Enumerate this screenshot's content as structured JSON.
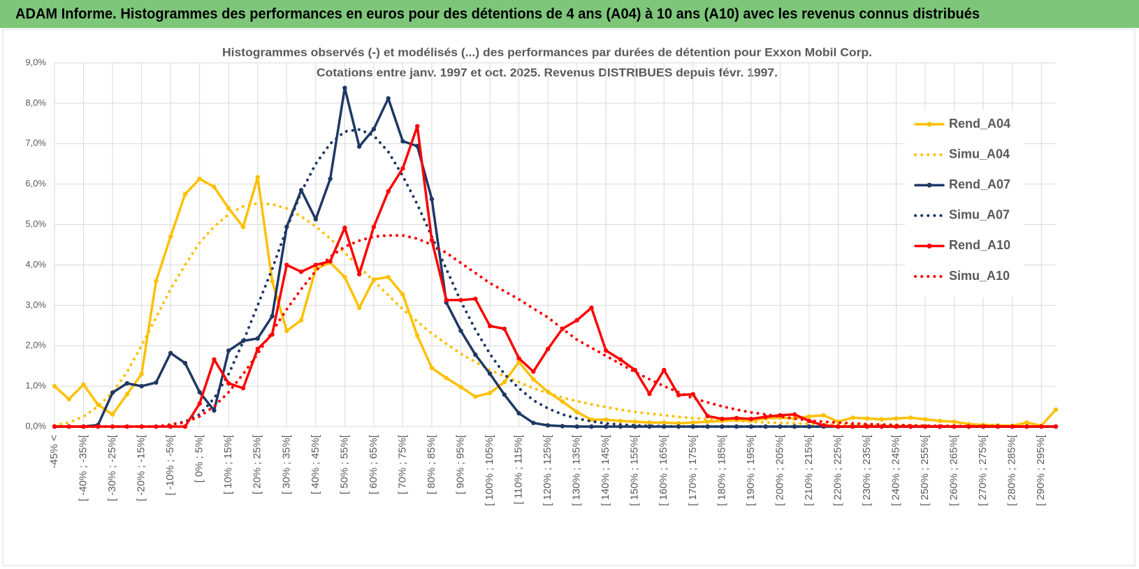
{
  "header": {
    "title": "ADAM Informe. Histogrammes des performances en euros pour des détentions de 4 ans (A04) à 10 ans (A10) avec les revenus connus distribués"
  },
  "chart_data": {
    "type": "line",
    "title": "Histogrammes observés (-) et modélisés (...) des performances par durées de détention pour Exxon Mobil Corp.",
    "subtitle": "Cotations entre janv. 1997 et oct. 2025.  Revenus DISTRIBUES depuis févr. 1997.",
    "categories": [
      "-45% <",
      null,
      "[ -40% ; -35%[",
      null,
      "[ -30% ; -25%[",
      null,
      "[ -20% ; -15%[",
      null,
      "[ -10% ; -5%[",
      null,
      "[ 0% ; 5%[",
      null,
      "[ 10% ; 15%[",
      null,
      "[ 20% ; 25%[",
      null,
      "[ 30% ; 35%[",
      null,
      "[ 40% ; 45%[",
      null,
      "[ 50% ; 55%[",
      null,
      "[ 60% ; 65%[",
      null,
      "[ 70% ; 75%[",
      null,
      "[ 80% ; 85%[",
      null,
      "[ 90% ; 95%[",
      null,
      "[ 100% ; 105%[",
      null,
      "[ 110% ; 115%[",
      null,
      "[ 120% ; 125%[",
      null,
      "[ 130% ; 135%[",
      null,
      "[ 140% ; 145%[",
      null,
      "[ 150% ; 155%[",
      null,
      "[ 160% ; 165%[",
      null,
      "[ 170% ; 175%[",
      null,
      "[ 180% ; 185%[",
      null,
      "[ 190% ; 195%[",
      null,
      "[ 200% ; 205%[",
      null,
      "[ 210% ; 215%[",
      null,
      "[ 220% ; 225%[",
      null,
      "[ 230% ; 235%[",
      null,
      "[ 240% ; 245%[",
      null,
      "[ 250% ; 255%[",
      null,
      "[ 260% ; 265%[",
      null,
      "[ 270% ; 275%[",
      null,
      "[ 280% ; 285%[",
      null,
      "[ 290% ; 295%[",
      null
    ],
    "ylim": [
      0,
      9
    ],
    "yticks": [
      {
        "value": 0,
        "label": "0,0%"
      },
      {
        "value": 1,
        "label": "1,0%"
      },
      {
        "value": 2,
        "label": "2,0%"
      },
      {
        "value": 3,
        "label": "3,0%"
      },
      {
        "value": 4,
        "label": "4,0%"
      },
      {
        "value": 5,
        "label": "5,0%"
      },
      {
        "value": 6,
        "label": "6,0%"
      },
      {
        "value": 7,
        "label": "7,0%"
      },
      {
        "value": 8,
        "label": "8,0%"
      },
      {
        "value": 9,
        "label": "9,0%"
      }
    ],
    "grid": true,
    "legend": "right",
    "series": [
      {
        "name": "Rend_A04",
        "color": "#FFC000",
        "line_style": "solid",
        "values": [
          1.0,
          0.68,
          1.04,
          0.54,
          0.3,
          0.8,
          1.3,
          3.6,
          4.7,
          5.75,
          6.13,
          5.93,
          5.4,
          4.94,
          6.17,
          3.6,
          2.37,
          2.63,
          3.9,
          4.06,
          3.7,
          2.94,
          3.64,
          3.7,
          3.27,
          2.25,
          1.45,
          1.2,
          0.98,
          0.74,
          0.83,
          1.1,
          1.6,
          1.17,
          0.86,
          0.62,
          0.36,
          0.17,
          0.17,
          0.14,
          0.12,
          0.1,
          0.1,
          0.08,
          0.1,
          0.12,
          0.14,
          0.16,
          0.15,
          0.2,
          0.22,
          0.2,
          0.25,
          0.28,
          0.12,
          0.22,
          0.2,
          0.18,
          0.2,
          0.22,
          0.18,
          0.14,
          0.12,
          0.06,
          0.04,
          0.03,
          0.02,
          0.1,
          0.02,
          0.42
        ]
      },
      {
        "name": "Simu_A04",
        "color": "#FFC000",
        "line_style": "dotted",
        "values": [
          0.03,
          0.1,
          0.25,
          0.5,
          0.85,
          1.35,
          2.0,
          2.7,
          3.4,
          4.0,
          4.55,
          4.95,
          5.25,
          5.45,
          5.52,
          5.5,
          5.4,
          5.2,
          4.95,
          4.65,
          4.3,
          3.95,
          3.6,
          3.25,
          2.9,
          2.6,
          2.3,
          2.05,
          1.8,
          1.6,
          1.4,
          1.25,
          1.1,
          0.95,
          0.83,
          0.72,
          0.63,
          0.55,
          0.48,
          0.42,
          0.36,
          0.32,
          0.28,
          0.24,
          0.21,
          0.18,
          0.16,
          0.14,
          0.12,
          0.1,
          0.09,
          0.08,
          0.07,
          0.06,
          0.05,
          0.05,
          0.04,
          0.04,
          0.03,
          0.03,
          0.02,
          0.02,
          0.02,
          0.02,
          0.01,
          0.01,
          0.01,
          0.01,
          0.01,
          0.01
        ]
      },
      {
        "name": "Rend_A07",
        "color": "#1F3864",
        "line_style": "solid",
        "values": [
          0,
          0,
          0,
          0.04,
          0.84,
          1.07,
          1.0,
          1.09,
          1.82,
          1.57,
          0.85,
          0.4,
          1.88,
          2.12,
          2.18,
          2.73,
          4.94,
          5.85,
          5.13,
          6.13,
          8.38,
          6.93,
          7.36,
          8.12,
          7.06,
          6.94,
          5.63,
          3.07,
          2.37,
          1.78,
          1.31,
          0.79,
          0.33,
          0.09,
          0.03,
          0.01,
          0,
          0,
          0,
          0,
          0,
          0,
          0,
          0,
          0,
          0,
          0,
          0,
          0,
          0,
          0,
          0,
          0,
          0,
          0,
          0,
          0,
          0,
          0,
          0,
          0,
          0,
          0,
          0,
          0,
          0,
          0,
          0,
          0,
          0
        ]
      },
      {
        "name": "Simu_A07",
        "color": "#1F3864",
        "line_style": "dotted",
        "values": [
          0,
          0,
          0,
          0,
          0,
          0,
          0,
          0,
          0.05,
          0.12,
          0.3,
          0.7,
          1.3,
          2.1,
          3.0,
          3.9,
          4.9,
          5.8,
          6.5,
          7.0,
          7.3,
          7.35,
          7.2,
          6.8,
          6.2,
          5.5,
          4.7,
          3.9,
          3.1,
          2.4,
          1.8,
          1.3,
          0.95,
          0.65,
          0.45,
          0.3,
          0.2,
          0.13,
          0.08,
          0.05,
          0.03,
          0.02,
          0.01,
          0,
          0,
          0,
          0,
          0,
          0,
          0,
          0,
          0,
          0,
          0,
          0,
          0,
          0,
          0,
          0,
          0,
          0,
          0,
          0,
          0,
          0,
          0,
          0,
          0,
          0,
          0
        ]
      },
      {
        "name": "Rend_A10",
        "color": "#FF0000",
        "line_style": "solid",
        "values": [
          0,
          0,
          0,
          0,
          0,
          0,
          0,
          0,
          0,
          0,
          0.57,
          1.66,
          1.07,
          0.95,
          1.92,
          2.28,
          4.0,
          3.83,
          4.0,
          4.09,
          4.92,
          3.77,
          4.94,
          5.82,
          6.39,
          7.43,
          4.61,
          3.13,
          3.13,
          3.16,
          2.49,
          2.42,
          1.69,
          1.36,
          1.92,
          2.42,
          2.63,
          2.94,
          1.88,
          1.66,
          1.4,
          0.81,
          1.4,
          0.78,
          0.8,
          0.26,
          0.19,
          0.21,
          0.19,
          0.24,
          0.28,
          0.3,
          0.14,
          0.03,
          0,
          0,
          0,
          0,
          0,
          0,
          0,
          0,
          0,
          0,
          0,
          0,
          0,
          0,
          0,
          0
        ]
      },
      {
        "name": "Simu_A10",
        "color": "#FF0000",
        "line_style": "dotted",
        "values": [
          0,
          0,
          0,
          0,
          0,
          0,
          0,
          0,
          0.05,
          0.1,
          0.25,
          0.5,
          0.85,
          1.3,
          1.8,
          2.35,
          2.9,
          3.4,
          3.85,
          4.2,
          4.45,
          4.6,
          4.7,
          4.73,
          4.73,
          4.65,
          4.5,
          4.3,
          4.05,
          3.8,
          3.55,
          3.35,
          3.15,
          2.92,
          2.7,
          2.42,
          2.15,
          1.95,
          1.75,
          1.55,
          1.35,
          1.17,
          1.0,
          0.85,
          0.7,
          0.6,
          0.5,
          0.42,
          0.35,
          0.3,
          0.25,
          0.2,
          0.15,
          0.12,
          0.1,
          0.08,
          0.06,
          0.05,
          0.04,
          0.03,
          0.02,
          0.02,
          0.01,
          0.01,
          0.01,
          0.01,
          0,
          0,
          0,
          0
        ]
      }
    ]
  }
}
